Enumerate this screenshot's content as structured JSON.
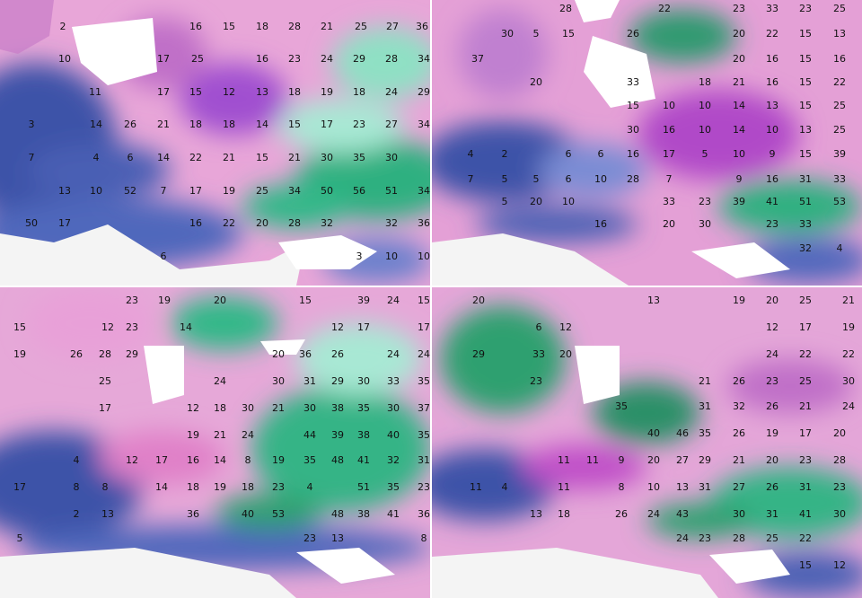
{
  "panels": [
    {
      "labels": [
        2,
        16,
        15,
        18,
        28,
        21,
        25,
        27,
        36,
        10,
        17,
        25,
        16,
        23,
        24,
        29,
        28,
        34,
        11,
        17,
        15,
        12,
        13,
        18,
        19,
        18,
        24,
        29,
        3,
        14,
        26,
        21,
        18,
        18,
        14,
        15,
        17,
        23,
        27,
        34,
        7,
        4,
        6,
        14,
        22,
        21,
        15,
        21,
        30,
        35,
        30,
        13,
        10,
        52,
        7,
        17,
        19,
        25,
        34,
        50,
        56,
        51,
        34,
        50,
        17,
        16,
        22,
        20,
        28,
        32,
        32,
        36,
        6,
        3,
        10,
        10
      ]
    },
    {
      "labels": [
        28,
        22,
        23,
        33,
        23,
        25,
        30,
        5,
        15,
        26,
        20,
        22,
        15,
        13,
        37,
        20,
        16,
        15,
        16,
        20,
        33,
        18,
        21,
        16,
        15,
        22,
        15,
        10,
        10,
        14,
        13,
        15,
        25,
        30,
        16,
        10,
        14,
        10,
        13,
        25,
        4,
        2,
        6,
        6,
        16,
        17,
        5,
        10,
        9,
        15,
        39,
        7,
        5,
        5,
        6,
        10,
        28,
        7,
        9,
        16,
        31,
        33,
        5,
        20,
        10,
        33,
        23,
        39,
        41,
        51,
        53,
        16,
        20,
        30,
        23,
        33,
        32,
        4
      ]
    },
    {
      "labels": [
        23,
        19,
        20,
        15,
        39,
        24,
        15,
        15,
        12,
        23,
        14,
        12,
        17,
        17,
        19,
        26,
        28,
        29,
        20,
        36,
        26,
        24,
        24,
        25,
        24,
        30,
        31,
        29,
        30,
        33,
        35,
        17,
        12,
        18,
        30,
        21,
        30,
        38,
        35,
        30,
        37,
        19,
        21,
        24,
        44,
        39,
        38,
        40,
        35,
        4,
        12,
        17,
        16,
        14,
        8,
        19,
        35,
        48,
        41,
        32,
        31,
        17,
        8,
        8,
        14,
        18,
        19,
        18,
        23,
        4,
        51,
        35,
        23,
        2,
        13,
        36,
        40,
        53,
        48,
        38,
        41,
        36,
        5,
        23,
        13,
        8
      ]
    },
    {
      "labels": [
        20,
        13,
        19,
        20,
        25,
        21,
        6,
        12,
        12,
        17,
        19,
        29,
        33,
        20,
        24,
        22,
        22,
        23,
        21,
        26,
        23,
        25,
        30,
        35,
        31,
        32,
        26,
        21,
        24,
        40,
        46,
        35,
        26,
        19,
        17,
        20,
        11,
        11,
        9,
        20,
        27,
        29,
        21,
        20,
        23,
        28,
        11,
        4,
        11,
        8,
        10,
        13,
        31,
        27,
        26,
        31,
        23,
        13,
        18,
        26,
        24,
        43,
        30,
        31,
        41,
        30,
        24,
        23,
        28,
        25,
        22,
        15,
        12
      ]
    }
  ]
}
